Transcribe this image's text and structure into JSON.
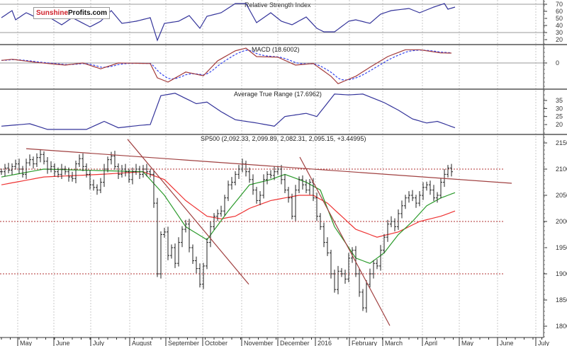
{
  "logo": {
    "part1": "Sunshine",
    "part2": "Profits.com"
  },
  "colors": {
    "rsi": "#33339a",
    "macd": "#a33a3a",
    "signal": "#3344ee",
    "atr": "#33339a",
    "ma_short": "#2a9a2a",
    "ma_long": "#ee3333",
    "trend": "#a04040",
    "ref": "#b03030",
    "bars": "#222222"
  },
  "chart_data": [
    {
      "type": "line",
      "title": "Relative Strength Index",
      "ylim": [
        14,
        77
      ],
      "yticks": [
        70,
        60,
        50,
        40,
        30,
        20
      ],
      "reference_lines": [
        70,
        30
      ],
      "points": [
        [
          0,
          51
        ],
        [
          3,
          61
        ],
        [
          4,
          48
        ],
        [
          7,
          58
        ],
        [
          10,
          51
        ],
        [
          13,
          53
        ],
        [
          17,
          41
        ],
        [
          20,
          51
        ],
        [
          25,
          38
        ],
        [
          28,
          46
        ],
        [
          31,
          61
        ],
        [
          34,
          43
        ],
        [
          38,
          46
        ],
        [
          42,
          51
        ],
        [
          44,
          19
        ],
        [
          46,
          43
        ],
        [
          50,
          46
        ],
        [
          53,
          54
        ],
        [
          56,
          36
        ],
        [
          58,
          53
        ],
        [
          62,
          58
        ],
        [
          66,
          71
        ],
        [
          69,
          71
        ],
        [
          72,
          44
        ],
        [
          76,
          58
        ],
        [
          79,
          46
        ],
        [
          82,
          41
        ],
        [
          86,
          52
        ],
        [
          89,
          36
        ],
        [
          91,
          31
        ],
        [
          94,
          31
        ],
        [
          98,
          46
        ],
        [
          100,
          48
        ],
        [
          104,
          43
        ],
        [
          107,
          56
        ],
        [
          110,
          61
        ],
        [
          115,
          64
        ],
        [
          118,
          58
        ],
        [
          122,
          66
        ],
        [
          125,
          71
        ],
        [
          126,
          63
        ],
        [
          128,
          66
        ]
      ]
    },
    {
      "type": "line",
      "title": "MACD (18.6002)",
      "yticks": [
        0
      ],
      "zero_line": 0,
      "macd": [
        [
          0,
          5
        ],
        [
          3,
          7
        ],
        [
          10,
          1
        ],
        [
          18,
          -4
        ],
        [
          23,
          0
        ],
        [
          28,
          -11
        ],
        [
          33,
          0
        ],
        [
          42,
          -1
        ],
        [
          44,
          -28
        ],
        [
          47,
          -36
        ],
        [
          52,
          -17
        ],
        [
          57,
          -24
        ],
        [
          61,
          4
        ],
        [
          66,
          23
        ],
        [
          69,
          28
        ],
        [
          72,
          12
        ],
        [
          78,
          11
        ],
        [
          83,
          -4
        ],
        [
          88,
          -1
        ],
        [
          93,
          -25
        ],
        [
          95,
          -39
        ],
        [
          100,
          -25
        ],
        [
          104,
          -8
        ],
        [
          109,
          12
        ],
        [
          114,
          25
        ],
        [
          118,
          25
        ],
        [
          124,
          19
        ],
        [
          127,
          18.6
        ]
      ],
      "signal_ema_period": 9
    },
    {
      "type": "line",
      "title": "Average True Range (17.6962)",
      "yticks": [
        35,
        30,
        25,
        20
      ],
      "points": [
        [
          0,
          19
        ],
        [
          8,
          20.5
        ],
        [
          13,
          17
        ],
        [
          24,
          17
        ],
        [
          29,
          22
        ],
        [
          33,
          18
        ],
        [
          39,
          19.5
        ],
        [
          42,
          20
        ],
        [
          45,
          38
        ],
        [
          49,
          39.5
        ],
        [
          55,
          33
        ],
        [
          58,
          34
        ],
        [
          62,
          28
        ],
        [
          66,
          23
        ],
        [
          72,
          21
        ],
        [
          77,
          19
        ],
        [
          80,
          25
        ],
        [
          86,
          27
        ],
        [
          89,
          25
        ],
        [
          94,
          39
        ],
        [
          98,
          38.5
        ],
        [
          102,
          39
        ],
        [
          108,
          33.7
        ],
        [
          112,
          29
        ],
        [
          116,
          23.5
        ],
        [
          120,
          21
        ],
        [
          123,
          22
        ],
        [
          128,
          18
        ]
      ]
    },
    {
      "type": "ohlc",
      "title": "SP500 (2,092.33, 2,099.89, 2,082.31, 2,095.15, +3.44995)",
      "ylim": [
        1780,
        2166
      ],
      "yticks": [
        2150,
        2100,
        2050,
        2000,
        1950,
        1900,
        1850,
        1800
      ],
      "reference_lines": [
        2100,
        2000,
        1900
      ],
      "closes": [
        2095,
        2102,
        2098,
        2105,
        2110,
        2100,
        2090,
        2112,
        2118,
        2110,
        2122,
        2128,
        2115,
        2100,
        2105,
        2095,
        2090,
        2100,
        2095,
        2085,
        2082,
        2110,
        2120,
        2105,
        2090,
        2070,
        2065,
        2060,
        2075,
        2100,
        2118,
        2125,
        2105,
        2090,
        2100,
        2095,
        2080,
        2095,
        2100,
        2090,
        2100,
        2095,
        2090,
        2035,
        1900,
        1975,
        1980,
        1935,
        1950,
        1920,
        1960,
        1985,
        1995,
        1950,
        1925,
        1910,
        1880,
        1915,
        1960,
        1990,
        2010,
        2015,
        2020,
        2045,
        2070,
        2075,
        2090,
        2100,
        2110,
        2095,
        2080,
        2060,
        2040,
        2050,
        2080,
        2090,
        2088,
        2095,
        2100,
        2080,
        2060,
        2045,
        2010,
        2060,
        2080,
        2070,
        2060,
        2075,
        2045,
        2010,
        1990,
        1960,
        1940,
        1900,
        1870,
        1905,
        1900,
        1890,
        1930,
        1945,
        1900,
        1865,
        1835,
        1880,
        1900,
        1920,
        1915,
        1945,
        1970,
        1995,
        2000,
        1990,
        2015,
        2030,
        2045,
        2050,
        2045,
        2035,
        2050,
        2065,
        2070,
        2060,
        2045,
        2050,
        2075,
        2090,
        2102,
        2095
      ],
      "ma_short": [
        [
          0,
          2085
        ],
        [
          12,
          2100
        ],
        [
          40,
          2095
        ],
        [
          46,
          2050
        ],
        [
          52,
          1990
        ],
        [
          58,
          1965
        ],
        [
          64,
          2020
        ],
        [
          70,
          2070
        ],
        [
          76,
          2080
        ],
        [
          80,
          2090
        ],
        [
          86,
          2075
        ],
        [
          90,
          2060
        ],
        [
          94,
          1990
        ],
        [
          100,
          1930
        ],
        [
          104,
          1920
        ],
        [
          108,
          1940
        ],
        [
          112,
          1975
        ],
        [
          116,
          2000
        ],
        [
          120,
          2030
        ],
        [
          124,
          2045
        ],
        [
          128,
          2055
        ]
      ],
      "ma_long": [
        [
          0,
          2070
        ],
        [
          12,
          2085
        ],
        [
          28,
          2090
        ],
        [
          40,
          2095
        ],
        [
          46,
          2080
        ],
        [
          52,
          2040
        ],
        [
          58,
          2010
        ],
        [
          62,
          2005
        ],
        [
          66,
          2010
        ],
        [
          70,
          2025
        ],
        [
          76,
          2040
        ],
        [
          84,
          2050
        ],
        [
          88,
          2050
        ],
        [
          92,
          2035
        ],
        [
          96,
          2010
        ],
        [
          100,
          1985
        ],
        [
          106,
          1970
        ],
        [
          112,
          1980
        ],
        [
          118,
          2000
        ],
        [
          124,
          2010
        ],
        [
          128,
          2020
        ]
      ],
      "trendlines": [
        [
          [
            7,
            2139
          ],
          [
            144,
            2073
          ]
        ],
        [
          [
            35.6,
            2157
          ],
          [
            69.8,
            1880
          ]
        ],
        [
          [
            84.2,
            2123
          ],
          [
            109.6,
            1801
          ]
        ]
      ]
    }
  ],
  "x_axis": {
    "months": [
      {
        "label": "May",
        "at": 4.6
      },
      {
        "label": "June",
        "at": 14.8
      },
      {
        "label": "July",
        "at": 25.2
      },
      {
        "label": "August",
        "at": 36.2
      },
      {
        "label": "September",
        "at": 46.4
      },
      {
        "label": "October",
        "at": 56.8
      },
      {
        "label": "November",
        "at": 67.8
      },
      {
        "label": "December",
        "at": 78
      },
      {
        "label": "2016",
        "at": 88.6
      },
      {
        "label": "February",
        "at": 98.2
      },
      {
        "label": "March",
        "at": 107.6
      },
      {
        "label": "April",
        "at": 118.8
      },
      {
        "label": "May",
        "at": 129.2
      },
      {
        "label": "June",
        "at": 140
      },
      {
        "label": "July",
        "at": 150.8
      }
    ]
  }
}
